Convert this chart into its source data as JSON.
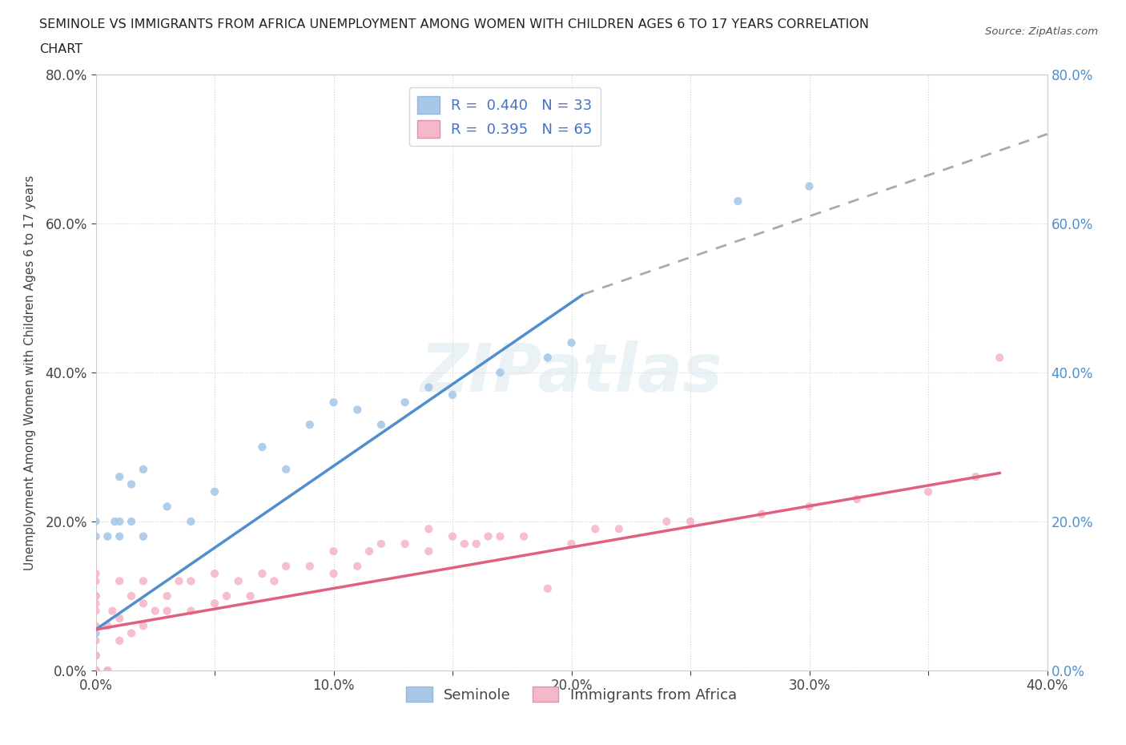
{
  "title_line1": "SEMINOLE VS IMMIGRANTS FROM AFRICA UNEMPLOYMENT AMONG WOMEN WITH CHILDREN AGES 6 TO 17 YEARS CORRELATION",
  "title_line2": "CHART",
  "source_text": "Source: ZipAtlas.com",
  "ylabel": "Unemployment Among Women with Children Ages 6 to 17 years",
  "watermark": "ZIPatlas",
  "seminole_label": "Seminole",
  "africa_label": "Immigrants from Africa",
  "seminole_color": "#a8c8e8",
  "africa_color": "#f4b8c8",
  "seminole_line_color": "#4f8fcc",
  "africa_line_color": "#e06080",
  "seminole_line_x0": 0.0,
  "seminole_line_y0": 0.055,
  "seminole_line_x1": 0.205,
  "seminole_line_y1": 0.505,
  "seminole_line_ext_x1": 0.4,
  "seminole_line_ext_y1": 0.72,
  "africa_line_x0": 0.0,
  "africa_line_y0": 0.055,
  "africa_line_x1": 0.38,
  "africa_line_y1": 0.265,
  "xlim": [
    0.0,
    0.4
  ],
  "ylim": [
    0.0,
    0.8
  ],
  "seminole_x": [
    0.0,
    0.0,
    0.0,
    0.0,
    0.0,
    0.0,
    0.005,
    0.005,
    0.008,
    0.01,
    0.01,
    0.01,
    0.015,
    0.015,
    0.02,
    0.02,
    0.03,
    0.04,
    0.05,
    0.07,
    0.08,
    0.09,
    0.1,
    0.11,
    0.12,
    0.13,
    0.14,
    0.15,
    0.17,
    0.19,
    0.2,
    0.27,
    0.3
  ],
  "seminole_y": [
    0.0,
    0.02,
    0.05,
    0.1,
    0.18,
    0.2,
    0.0,
    0.18,
    0.2,
    0.18,
    0.2,
    0.26,
    0.2,
    0.25,
    0.18,
    0.27,
    0.22,
    0.2,
    0.24,
    0.3,
    0.27,
    0.33,
    0.36,
    0.35,
    0.33,
    0.36,
    0.38,
    0.37,
    0.4,
    0.42,
    0.44,
    0.63,
    0.65
  ],
  "africa_x": [
    0.0,
    0.0,
    0.0,
    0.0,
    0.0,
    0.0,
    0.0,
    0.0,
    0.0,
    0.0,
    0.0,
    0.0,
    0.0,
    0.005,
    0.005,
    0.007,
    0.01,
    0.01,
    0.01,
    0.015,
    0.015,
    0.02,
    0.02,
    0.02,
    0.025,
    0.03,
    0.03,
    0.035,
    0.04,
    0.04,
    0.05,
    0.05,
    0.055,
    0.06,
    0.065,
    0.07,
    0.075,
    0.08,
    0.09,
    0.1,
    0.1,
    0.11,
    0.115,
    0.12,
    0.13,
    0.14,
    0.14,
    0.15,
    0.155,
    0.16,
    0.165,
    0.17,
    0.18,
    0.19,
    0.2,
    0.21,
    0.22,
    0.24,
    0.25,
    0.28,
    0.3,
    0.32,
    0.35,
    0.37,
    0.38
  ],
  "africa_y": [
    0.0,
    0.0,
    0.0,
    0.0,
    0.0,
    0.02,
    0.04,
    0.06,
    0.08,
    0.09,
    0.1,
    0.12,
    0.13,
    0.0,
    0.06,
    0.08,
    0.04,
    0.07,
    0.12,
    0.05,
    0.1,
    0.06,
    0.09,
    0.12,
    0.08,
    0.08,
    0.1,
    0.12,
    0.08,
    0.12,
    0.09,
    0.13,
    0.1,
    0.12,
    0.1,
    0.13,
    0.12,
    0.14,
    0.14,
    0.13,
    0.16,
    0.14,
    0.16,
    0.17,
    0.17,
    0.16,
    0.19,
    0.18,
    0.17,
    0.17,
    0.18,
    0.18,
    0.18,
    0.11,
    0.17,
    0.19,
    0.19,
    0.2,
    0.2,
    0.21,
    0.22,
    0.23,
    0.24,
    0.26,
    0.42
  ]
}
